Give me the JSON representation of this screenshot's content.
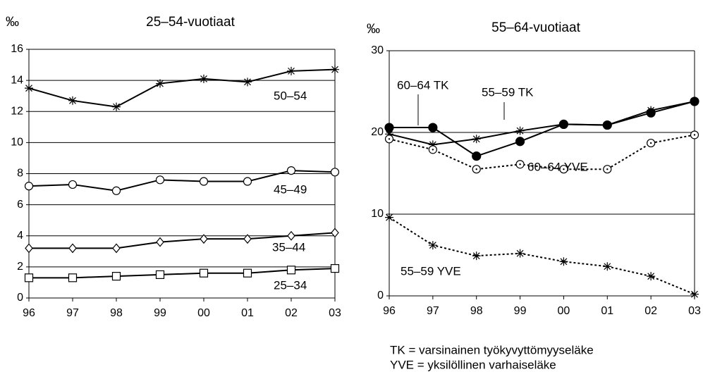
{
  "chart_data": [
    {
      "type": "line",
      "title": "25–54-vuotiaat",
      "ylabel": "‰",
      "categories": [
        "96",
        "97",
        "98",
        "99",
        "00",
        "01",
        "02",
        "03"
      ],
      "ylim": [
        0,
        16
      ],
      "yticks": [
        0,
        2,
        4,
        6,
        8,
        10,
        12,
        14,
        16
      ],
      "grid": true,
      "series": [
        {
          "name": "50–54",
          "color": "#000000",
          "marker": "asterisk",
          "dash": "solid",
          "values": [
            13.5,
            12.7,
            12.3,
            13.8,
            14.1,
            13.9,
            14.6,
            14.7
          ]
        },
        {
          "name": "45–49",
          "color": "#000000",
          "marker": "circle",
          "dash": "solid",
          "values": [
            7.2,
            7.3,
            6.9,
            7.6,
            7.5,
            7.5,
            8.2,
            8.1
          ]
        },
        {
          "name": "35–44",
          "color": "#000000",
          "marker": "diamond",
          "dash": "solid",
          "values": [
            3.2,
            3.2,
            3.2,
            3.6,
            3.8,
            3.8,
            4.0,
            4.2
          ]
        },
        {
          "name": "25–34",
          "color": "#000000",
          "marker": "square",
          "dash": "solid",
          "values": [
            1.3,
            1.3,
            1.4,
            1.5,
            1.6,
            1.6,
            1.8,
            1.9
          ]
        }
      ]
    },
    {
      "type": "line",
      "title": "55–64-vuotiaat",
      "ylabel": "‰",
      "categories": [
        "96",
        "97",
        "98",
        "99",
        "00",
        "01",
        "02",
        "03"
      ],
      "ylim": [
        0,
        30
      ],
      "yticks": [
        0,
        10,
        20,
        30
      ],
      "grid": true,
      "series": [
        {
          "name": "60–64 TK",
          "color": "#000000",
          "marker": "filled-circle",
          "dash": "solid",
          "values": [
            20.6,
            20.6,
            17.1,
            18.9,
            21.0,
            20.9,
            22.4,
            23.8
          ]
        },
        {
          "name": "55–59 TK",
          "color": "#000000",
          "marker": "asterisk",
          "dash": "solid",
          "values": [
            19.8,
            18.5,
            19.2,
            20.2,
            21.0,
            20.9,
            22.7,
            23.8
          ]
        },
        {
          "name": "60–64 YVE",
          "color": "#000000",
          "marker": "dotted-circle",
          "dash": "dotted",
          "values": [
            19.2,
            17.9,
            15.5,
            16.1,
            15.5,
            15.5,
            18.7,
            19.7
          ]
        },
        {
          "name": "55–59 YVE",
          "color": "#000000",
          "marker": "asterisk",
          "dash": "dotted",
          "values": [
            9.6,
            6.2,
            4.9,
            5.2,
            4.2,
            3.6,
            2.4,
            0.2
          ]
        }
      ]
    }
  ],
  "footnotes": [
    "TK = varsinainen työkyvyttömyyseläke",
    "YVE = yksilöllinen varhaiseläke"
  ]
}
